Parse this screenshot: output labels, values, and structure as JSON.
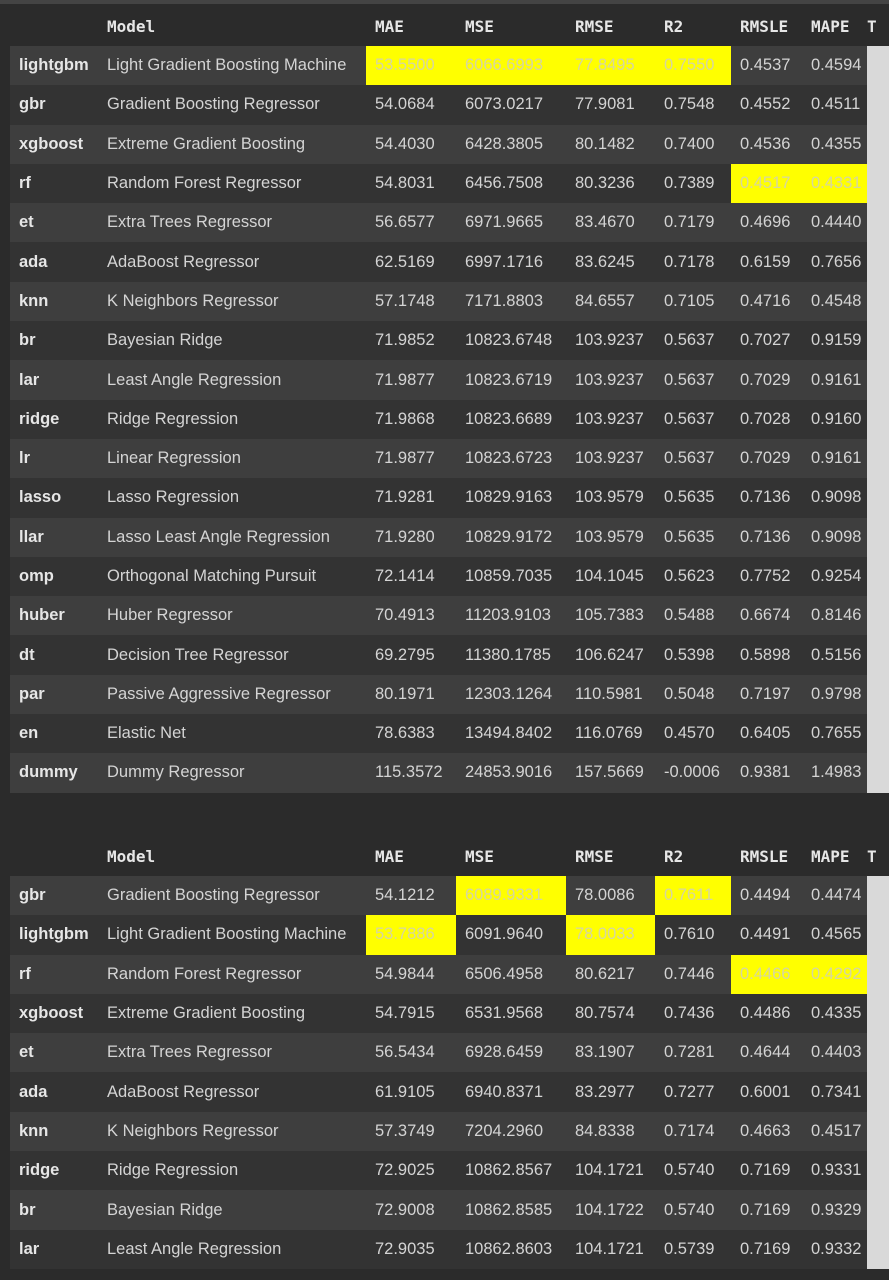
{
  "columns": [
    "",
    "Model",
    "MAE",
    "MSE",
    "RMSE",
    "R2",
    "RMSLE",
    "MAPE",
    "T"
  ],
  "highlight_color": "#ffff00",
  "table1": {
    "rows": [
      {
        "id": "lightgbm",
        "model": "Light Gradient Boosting Machine",
        "mae": "53.5500",
        "mse": "6066.6993",
        "rmse": "77.8495",
        "r2": "0.7550",
        "rmsle": "0.4537",
        "mape": "0.4594",
        "hl": [
          "mae",
          "mse",
          "rmse",
          "r2"
        ]
      },
      {
        "id": "gbr",
        "model": "Gradient Boosting Regressor",
        "mae": "54.0684",
        "mse": "6073.0217",
        "rmse": "77.9081",
        "r2": "0.7548",
        "rmsle": "0.4552",
        "mape": "0.4511",
        "hl": []
      },
      {
        "id": "xgboost",
        "model": "Extreme Gradient Boosting",
        "mae": "54.4030",
        "mse": "6428.3805",
        "rmse": "80.1482",
        "r2": "0.7400",
        "rmsle": "0.4536",
        "mape": "0.4355",
        "hl": []
      },
      {
        "id": "rf",
        "model": "Random Forest Regressor",
        "mae": "54.8031",
        "mse": "6456.7508",
        "rmse": "80.3236",
        "r2": "0.7389",
        "rmsle": "0.4517",
        "mape": "0.4331",
        "hl": [
          "rmsle",
          "mape"
        ]
      },
      {
        "id": "et",
        "model": "Extra Trees Regressor",
        "mae": "56.6577",
        "mse": "6971.9665",
        "rmse": "83.4670",
        "r2": "0.7179",
        "rmsle": "0.4696",
        "mape": "0.4440",
        "hl": []
      },
      {
        "id": "ada",
        "model": "AdaBoost Regressor",
        "mae": "62.5169",
        "mse": "6997.1716",
        "rmse": "83.6245",
        "r2": "0.7178",
        "rmsle": "0.6159",
        "mape": "0.7656",
        "hl": []
      },
      {
        "id": "knn",
        "model": "K Neighbors Regressor",
        "mae": "57.1748",
        "mse": "7171.8803",
        "rmse": "84.6557",
        "r2": "0.7105",
        "rmsle": "0.4716",
        "mape": "0.4548",
        "hl": []
      },
      {
        "id": "br",
        "model": "Bayesian Ridge",
        "mae": "71.9852",
        "mse": "10823.6748",
        "rmse": "103.9237",
        "r2": "0.5637",
        "rmsle": "0.7027",
        "mape": "0.9159",
        "hl": []
      },
      {
        "id": "lar",
        "model": "Least Angle Regression",
        "mae": "71.9877",
        "mse": "10823.6719",
        "rmse": "103.9237",
        "r2": "0.5637",
        "rmsle": "0.7029",
        "mape": "0.9161",
        "hl": []
      },
      {
        "id": "ridge",
        "model": "Ridge Regression",
        "mae": "71.9868",
        "mse": "10823.6689",
        "rmse": "103.9237",
        "r2": "0.5637",
        "rmsle": "0.7028",
        "mape": "0.9160",
        "hl": []
      },
      {
        "id": "lr",
        "model": "Linear Regression",
        "mae": "71.9877",
        "mse": "10823.6723",
        "rmse": "103.9237",
        "r2": "0.5637",
        "rmsle": "0.7029",
        "mape": "0.9161",
        "hl": []
      },
      {
        "id": "lasso",
        "model": "Lasso Regression",
        "mae": "71.9281",
        "mse": "10829.9163",
        "rmse": "103.9579",
        "r2": "0.5635",
        "rmsle": "0.7136",
        "mape": "0.9098",
        "hl": []
      },
      {
        "id": "llar",
        "model": "Lasso Least Angle Regression",
        "mae": "71.9280",
        "mse": "10829.9172",
        "rmse": "103.9579",
        "r2": "0.5635",
        "rmsle": "0.7136",
        "mape": "0.9098",
        "hl": []
      },
      {
        "id": "omp",
        "model": "Orthogonal Matching Pursuit",
        "mae": "72.1414",
        "mse": "10859.7035",
        "rmse": "104.1045",
        "r2": "0.5623",
        "rmsle": "0.7752",
        "mape": "0.9254",
        "hl": []
      },
      {
        "id": "huber",
        "model": "Huber Regressor",
        "mae": "70.4913",
        "mse": "11203.9103",
        "rmse": "105.7383",
        "r2": "0.5488",
        "rmsle": "0.6674",
        "mape": "0.8146",
        "hl": []
      },
      {
        "id": "dt",
        "model": "Decision Tree Regressor",
        "mae": "69.2795",
        "mse": "11380.1785",
        "rmse": "106.6247",
        "r2": "0.5398",
        "rmsle": "0.5898",
        "mape": "0.5156",
        "hl": []
      },
      {
        "id": "par",
        "model": "Passive Aggressive Regressor",
        "mae": "80.1971",
        "mse": "12303.1264",
        "rmse": "110.5981",
        "r2": "0.5048",
        "rmsle": "0.7197",
        "mape": "0.9798",
        "hl": []
      },
      {
        "id": "en",
        "model": "Elastic Net",
        "mae": "78.6383",
        "mse": "13494.8402",
        "rmse": "116.0769",
        "r2": "0.4570",
        "rmsle": "0.6405",
        "mape": "0.7655",
        "hl": []
      },
      {
        "id": "dummy",
        "model": "Dummy Regressor",
        "mae": "115.3572",
        "mse": "24853.9016",
        "rmse": "157.5669",
        "r2": "-0.0006",
        "rmsle": "0.9381",
        "mape": "1.4983",
        "hl": []
      }
    ]
  },
  "table2": {
    "rows": [
      {
        "id": "gbr",
        "model": "Gradient Boosting Regressor",
        "mae": "54.1212",
        "mse": "6089.9331",
        "rmse": "78.0086",
        "r2": "0.7611",
        "rmsle": "0.4494",
        "mape": "0.4474",
        "hl": [
          "mse",
          "r2"
        ]
      },
      {
        "id": "lightgbm",
        "model": "Light Gradient Boosting Machine",
        "mae": "53.7886",
        "mse": "6091.9640",
        "rmse": "78.0033",
        "r2": "0.7610",
        "rmsle": "0.4491",
        "mape": "0.4565",
        "hl": [
          "mae",
          "rmse"
        ]
      },
      {
        "id": "rf",
        "model": "Random Forest Regressor",
        "mae": "54.9844",
        "mse": "6506.4958",
        "rmse": "80.6217",
        "r2": "0.7446",
        "rmsle": "0.4466",
        "mape": "0.4292",
        "hl": [
          "rmsle",
          "mape"
        ]
      },
      {
        "id": "xgboost",
        "model": "Extreme Gradient Boosting",
        "mae": "54.7915",
        "mse": "6531.9568",
        "rmse": "80.7574",
        "r2": "0.7436",
        "rmsle": "0.4486",
        "mape": "0.4335",
        "hl": []
      },
      {
        "id": "et",
        "model": "Extra Trees Regressor",
        "mae": "56.5434",
        "mse": "6928.6459",
        "rmse": "83.1907",
        "r2": "0.7281",
        "rmsle": "0.4644",
        "mape": "0.4403",
        "hl": []
      },
      {
        "id": "ada",
        "model": "AdaBoost Regressor",
        "mae": "61.9105",
        "mse": "6940.8371",
        "rmse": "83.2977",
        "r2": "0.7277",
        "rmsle": "0.6001",
        "mape": "0.7341",
        "hl": []
      },
      {
        "id": "knn",
        "model": "K Neighbors Regressor",
        "mae": "57.3749",
        "mse": "7204.2960",
        "rmse": "84.8338",
        "r2": "0.7174",
        "rmsle": "0.4663",
        "mape": "0.4517",
        "hl": []
      },
      {
        "id": "ridge",
        "model": "Ridge Regression",
        "mae": "72.9025",
        "mse": "10862.8567",
        "rmse": "104.1721",
        "r2": "0.5740",
        "rmsle": "0.7169",
        "mape": "0.9331",
        "hl": []
      },
      {
        "id": "br",
        "model": "Bayesian Ridge",
        "mae": "72.9008",
        "mse": "10862.8585",
        "rmse": "104.1722",
        "r2": "0.5740",
        "rmsle": "0.7169",
        "mape": "0.9329",
        "hl": []
      },
      {
        "id": "lar",
        "model": "Least Angle Regression",
        "mae": "72.9035",
        "mse": "10862.8603",
        "rmse": "104.1721",
        "r2": "0.5739",
        "rmsle": "0.7169",
        "mape": "0.9332",
        "hl": []
      }
    ]
  }
}
